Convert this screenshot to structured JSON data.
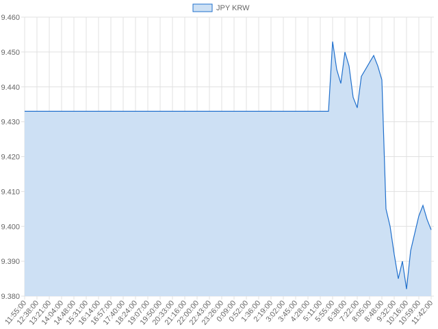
{
  "chart_data": {
    "type": "area",
    "categories": [
      "11:55:00",
      null,
      null,
      "12:38:00",
      null,
      null,
      "13:21:00",
      null,
      null,
      "14:04:00",
      null,
      null,
      "14:48:00",
      null,
      null,
      "15:31:00",
      null,
      null,
      "16:14:00",
      null,
      null,
      "16:57:00",
      null,
      null,
      "17:40:00",
      null,
      null,
      "18:24:00",
      null,
      null,
      "19:07:00",
      null,
      null,
      "19:50:00",
      null,
      null,
      "20:33:00",
      null,
      null,
      "21:16:00",
      null,
      null,
      "22:00:00",
      null,
      null,
      "22:43:00",
      null,
      null,
      "23:26:00",
      null,
      null,
      "0:09:00",
      null,
      null,
      "0:52:00",
      null,
      null,
      "1:36:00",
      null,
      null,
      "2:19:00",
      null,
      null,
      "3:02:00",
      null,
      null,
      "3:45:00",
      null,
      null,
      "4:28:00",
      null,
      null,
      "5:11:00",
      null,
      null,
      "5:55:00",
      null,
      null,
      "6:38:00",
      null,
      null,
      "7:22:00",
      null,
      null,
      "8:05:00",
      null,
      null,
      "8:48:00",
      null,
      null,
      "9:32:00",
      null,
      null,
      "10:16:00",
      null,
      null,
      "10:59:00",
      null,
      null,
      "11:42:00"
    ],
    "series": [
      {
        "name": "JPY KRW",
        "color": "#1f6fcc",
        "fill": "#cde0f4",
        "values": [
          9.433,
          9.433,
          9.433,
          9.433,
          9.433,
          9.433,
          9.433,
          9.433,
          9.433,
          9.433,
          9.433,
          9.433,
          9.433,
          9.433,
          9.433,
          9.433,
          9.433,
          9.433,
          9.433,
          9.433,
          9.433,
          9.433,
          9.433,
          9.433,
          9.433,
          9.433,
          9.433,
          9.433,
          9.433,
          9.433,
          9.433,
          9.433,
          9.433,
          9.433,
          9.433,
          9.433,
          9.433,
          9.433,
          9.433,
          9.433,
          9.433,
          9.433,
          9.433,
          9.433,
          9.433,
          9.433,
          9.433,
          9.433,
          9.433,
          9.433,
          9.433,
          9.433,
          9.433,
          9.433,
          9.433,
          9.433,
          9.433,
          9.433,
          9.433,
          9.433,
          9.433,
          9.433,
          9.433,
          9.433,
          9.433,
          9.433,
          9.433,
          9.433,
          9.433,
          9.433,
          9.433,
          9.433,
          9.433,
          9.433,
          9.433,
          9.453,
          9.445,
          9.441,
          9.45,
          9.446,
          9.437,
          9.434,
          9.443,
          9.445,
          9.447,
          9.449,
          9.446,
          9.442,
          9.405,
          9.4,
          9.392,
          9.385,
          9.39,
          9.382,
          9.393,
          9.398,
          9.403,
          9.406,
          9.402,
          9.399
        ]
      }
    ],
    "ylim": [
      9.38,
      9.46
    ],
    "yticks": [
      {
        "value": 9.38,
        "label": "9.380"
      },
      {
        "value": 9.39,
        "label": "9.390"
      },
      {
        "value": 9.4,
        "label": "9.400"
      },
      {
        "value": 9.41,
        "label": "9.410"
      },
      {
        "value": 9.42,
        "label": "9.420"
      },
      {
        "value": 9.43,
        "label": "9.430"
      },
      {
        "value": 9.44,
        "label": "9.440"
      },
      {
        "value": 9.45,
        "label": "9.450"
      },
      {
        "value": 9.46,
        "label": "9.460"
      }
    ],
    "grid": true,
    "legend": "top"
  }
}
